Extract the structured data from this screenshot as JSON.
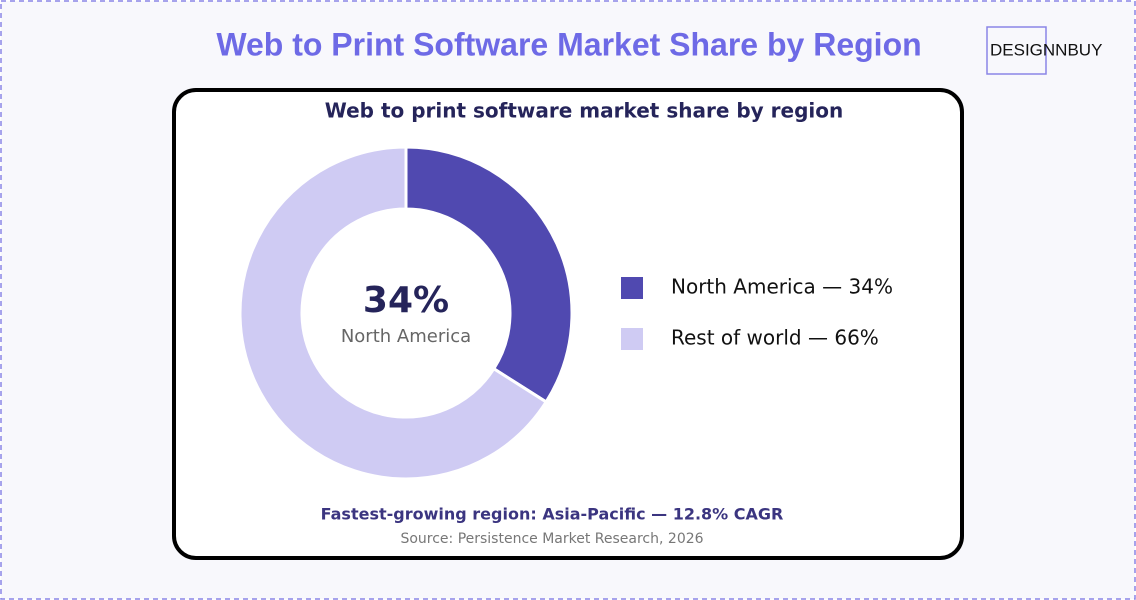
{
  "header": {
    "title": "Web to Print Software Market Share by Region",
    "logo": "DESIGNNBUY"
  },
  "chart_data": {
    "type": "pie",
    "title": "Web to print software market share by region",
    "categories": [
      "North America — 34%",
      "Rest of world — 66%"
    ],
    "values": [
      34,
      66
    ],
    "colors": [
      "#5049b0",
      "#cfcbf3"
    ],
    "donut": true,
    "center": {
      "text": "34%",
      "caption": "North America"
    },
    "legend": "right",
    "annotation": "Fastest-growing region: Asia-Pacific — 12.8% CAGR",
    "source": "Source: Persistence Market Research, 2026"
  }
}
